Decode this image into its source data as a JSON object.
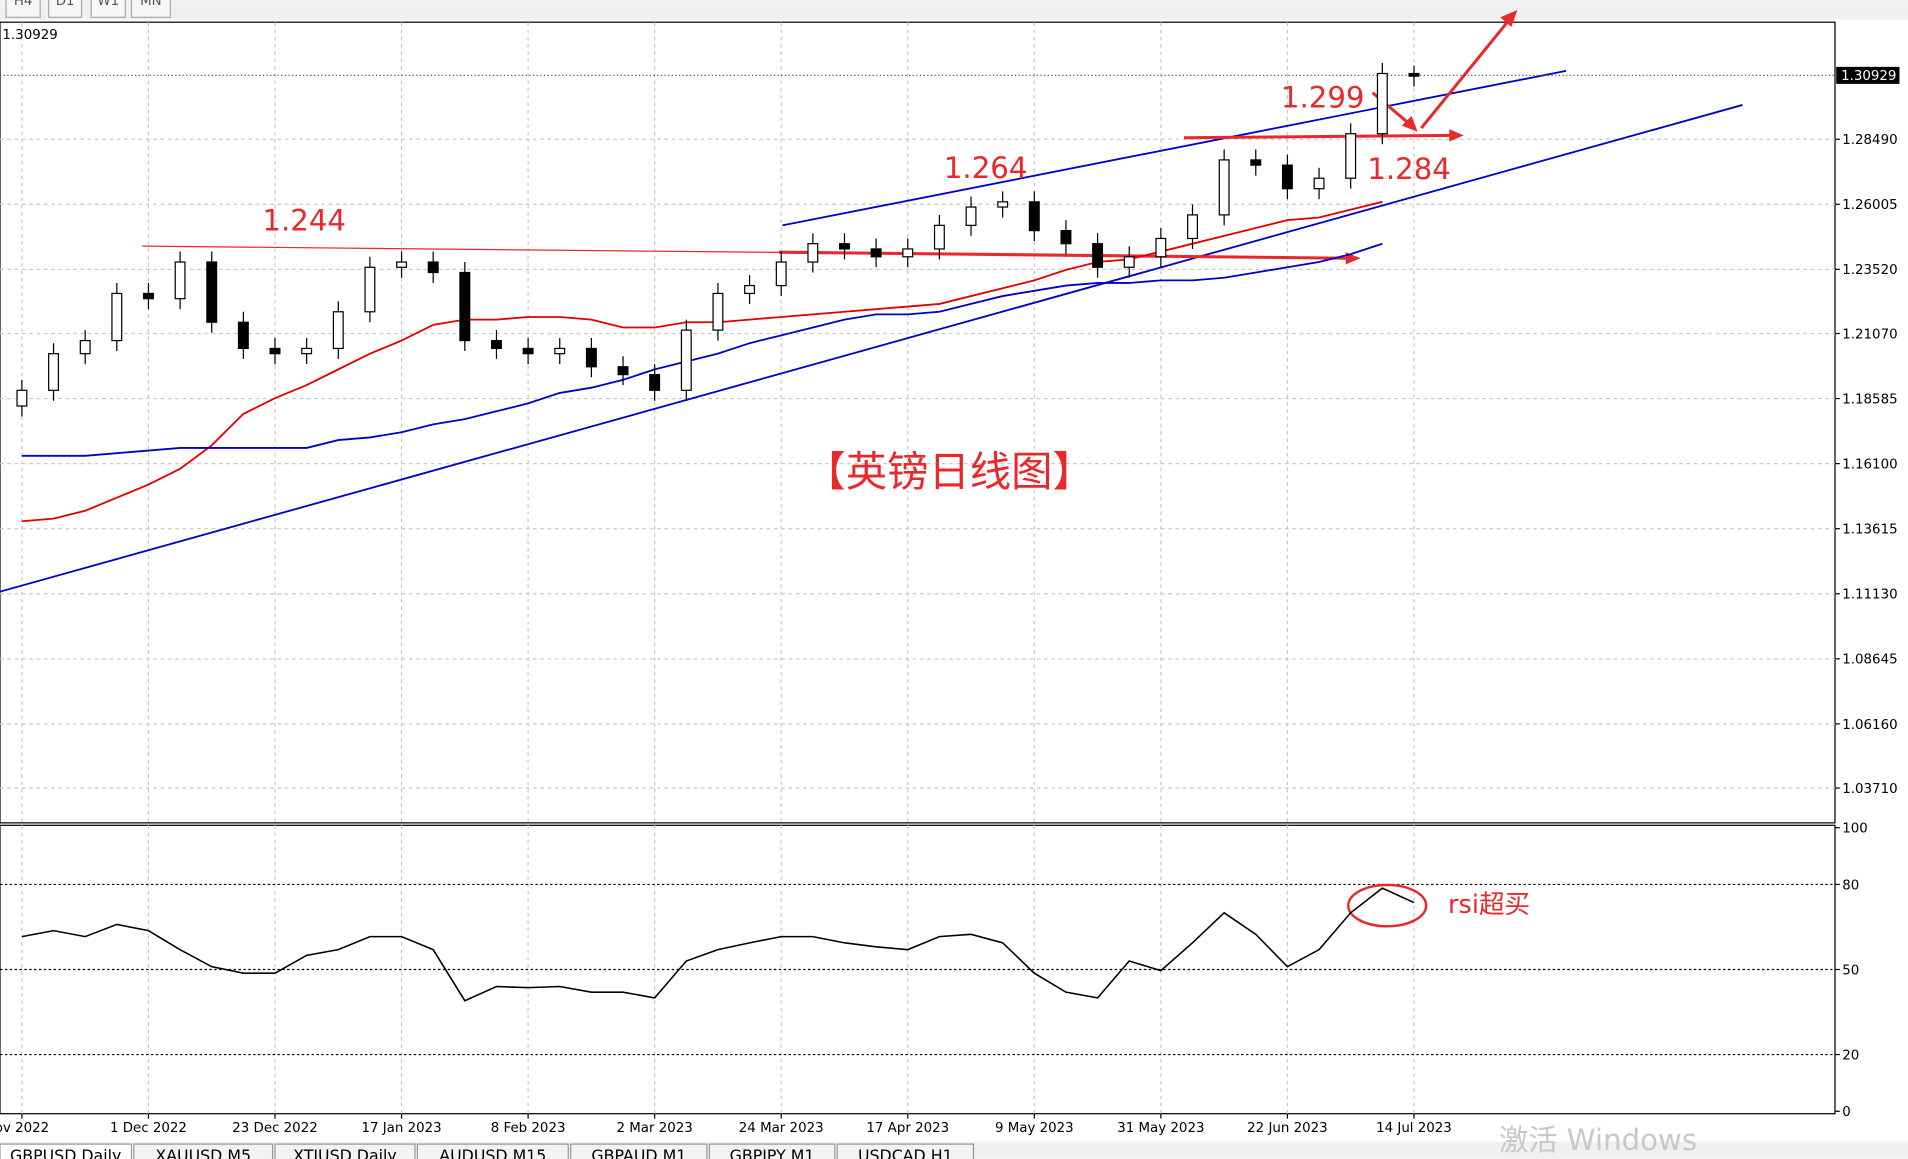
{
  "chart_data": [
    {
      "type": "candlestick",
      "current_price": 1.30929,
      "categories": [
        "ov 2022",
        null,
        null,
        null,
        "1 Dec 2022",
        null,
        null,
        null,
        "23 Dec 2022",
        null,
        null,
        null,
        "17 Jan 2023",
        null,
        null,
        null,
        "8 Feb 2023",
        null,
        null,
        null,
        "2 Mar 2023",
        null,
        null,
        null,
        "24 Mar 2023",
        null,
        null,
        null,
        "17 Apr 2023",
        null,
        null,
        null,
        "9 May 2023",
        null,
        null,
        null,
        "31 May 2023",
        null,
        null,
        null,
        "22 Jun 2023",
        null,
        null,
        null,
        "14 Jul 2023"
      ],
      "open": [
        1.183,
        1.189,
        1.203,
        1.208,
        1.226,
        1.224,
        1.238,
        1.215,
        1.205,
        1.203,
        1.205,
        1.219,
        1.236,
        1.238,
        1.234,
        1.208,
        1.205,
        1.203,
        1.205,
        1.198,
        1.195,
        1.189,
        1.212,
        1.226,
        1.229,
        1.238,
        1.245,
        1.243,
        1.24,
        1.243,
        1.252,
        1.259,
        1.261,
        1.25,
        1.245,
        1.236,
        1.24,
        1.247,
        1.256,
        1.277,
        1.275,
        1.266,
        1.27,
        1.287,
        1.31
      ],
      "high": [
        1.193,
        1.207,
        1.212,
        1.23,
        1.23,
        1.242,
        1.242,
        1.219,
        1.209,
        1.209,
        1.223,
        1.24,
        1.242,
        1.242,
        1.238,
        1.212,
        1.209,
        1.209,
        1.209,
        1.202,
        1.199,
        1.216,
        1.23,
        1.233,
        1.242,
        1.249,
        1.249,
        1.247,
        1.247,
        1.256,
        1.263,
        1.265,
        1.265,
        1.254,
        1.249,
        1.244,
        1.251,
        1.26,
        1.281,
        1.281,
        1.279,
        1.274,
        1.291,
        1.314,
        1.313
      ],
      "low": [
        1.179,
        1.185,
        1.199,
        1.204,
        1.22,
        1.22,
        1.211,
        1.201,
        1.199,
        1.199,
        1.201,
        1.215,
        1.232,
        1.23,
        1.204,
        1.201,
        1.199,
        1.199,
        1.194,
        1.191,
        1.185,
        1.185,
        1.208,
        1.222,
        1.225,
        1.234,
        1.239,
        1.236,
        1.236,
        1.239,
        1.248,
        1.255,
        1.246,
        1.241,
        1.232,
        1.232,
        1.236,
        1.243,
        1.252,
        1.271,
        1.262,
        1.262,
        1.266,
        1.283,
        1.305
      ],
      "close": [
        1.189,
        1.203,
        1.208,
        1.226,
        1.224,
        1.238,
        1.215,
        1.205,
        1.203,
        1.205,
        1.219,
        1.236,
        1.238,
        1.234,
        1.208,
        1.205,
        1.203,
        1.205,
        1.198,
        1.195,
        1.189,
        1.212,
        1.226,
        1.229,
        1.238,
        1.245,
        1.243,
        1.24,
        1.243,
        1.252,
        1.259,
        1.261,
        1.25,
        1.245,
        1.236,
        1.24,
        1.247,
        1.256,
        1.277,
        1.275,
        1.266,
        1.27,
        1.287,
        1.31,
        1.309
      ],
      "moving_averages": [
        {
          "color": "#e00000",
          "values": [
            1.139,
            1.14,
            1.143,
            1.148,
            1.153,
            1.159,
            1.168,
            1.18,
            1.186,
            1.191,
            1.197,
            1.203,
            1.208,
            1.214,
            1.216,
            1.216,
            1.217,
            1.217,
            1.216,
            1.213,
            1.213,
            1.215,
            1.215,
            1.216,
            1.217,
            1.218,
            1.219,
            1.22,
            1.221,
            1.222,
            1.225,
            1.228,
            1.231,
            1.235,
            1.238,
            1.239,
            1.242,
            1.245,
            1.248,
            1.251,
            1.254,
            1.255,
            1.258,
            1.261,
            null
          ]
        },
        {
          "color": "#0000c8",
          "values": [
            1.164,
            1.164,
            1.164,
            1.165,
            1.166,
            1.167,
            1.167,
            1.167,
            1.167,
            1.167,
            1.17,
            1.171,
            1.173,
            1.176,
            1.178,
            1.181,
            1.184,
            1.188,
            1.19,
            1.193,
            1.197,
            1.2,
            1.203,
            1.207,
            1.21,
            1.213,
            1.216,
            1.218,
            1.218,
            1.219,
            1.222,
            1.225,
            1.227,
            1.229,
            1.23,
            1.23,
            1.231,
            1.231,
            1.232,
            1.234,
            1.236,
            1.238,
            1.241,
            1.245,
            null
          ]
        }
      ],
      "ylim": [
        1.0238,
        1.3296
      ],
      "yticks": [
        {
          "value": 1.2849,
          "label": "1.28490"
        },
        1.26005,
        {
          "value": 1.2352,
          "label": "1.23520"
        },
        {
          "value": 1.2107,
          "label": "1.21070"
        },
        1.18585,
        {
          "value": 1.161,
          "label": "1.16100"
        },
        1.13615,
        {
          "value": 1.1113,
          "label": "1.11130"
        },
        1.08645,
        {
          "value": 1.0616,
          "label": "1.06160"
        },
        {
          "value": 1.0371,
          "label": "1.03710"
        }
      ],
      "grid": true,
      "annotations": [
        "1.244",
        "1.264",
        "1.299",
        "1.284",
        "【英镑日线图】"
      ]
    },
    {
      "type": "line",
      "color": "#000000",
      "values": [
        61.6,
        63.7,
        61.6,
        65.9,
        63.7,
        57,
        51,
        48.7,
        48.7,
        55,
        57,
        61.6,
        61.6,
        57,
        39,
        44,
        43.6,
        44,
        42,
        42,
        40,
        53,
        57,
        59.4,
        61.6,
        61.6,
        59.4,
        58,
        57,
        61.6,
        62.4,
        59.4,
        48.7,
        42,
        40,
        53,
        49.6,
        59.4,
        70,
        62.4,
        51,
        57,
        70,
        78.7,
        73.6
      ],
      "ylim": [
        0,
        100
      ],
      "yticks": [
        100,
        80,
        50,
        20,
        0
      ],
      "levels": [
        80,
        50,
        20
      ],
      "annotations": [
        "rsi超买"
      ]
    }
  ],
  "ui": {
    "timeframes": [
      "H4",
      "D1",
      "W1",
      "MN"
    ],
    "tabs": [
      "GBPUSD,Daily",
      "XAUUSD,M5",
      "XTIUSD,Daily",
      "AUDUSD,M15",
      "GBPAUD,M1",
      "GBPJPY,M1",
      "USDCAD,H1"
    ],
    "watermark": "激活 Windows"
  }
}
